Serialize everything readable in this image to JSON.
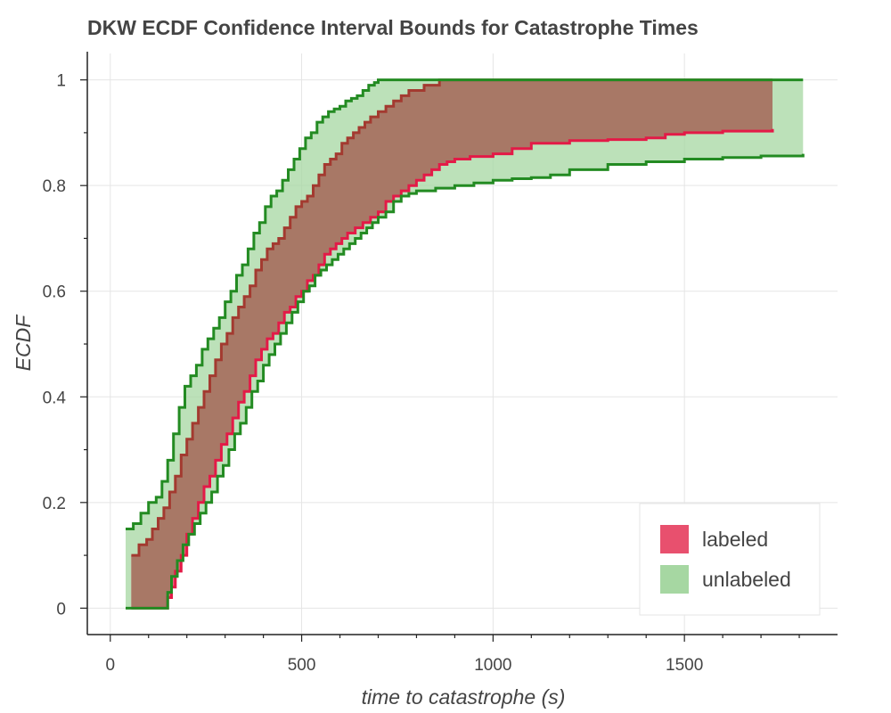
{
  "chart_data": {
    "type": "area",
    "title": "DKW ECDF Confidence Interval Bounds for Catastrophe Times",
    "xlabel": "time to catastrophe (s)",
    "ylabel": "ECDF",
    "xlim": [
      -60,
      1900
    ],
    "ylim": [
      -0.05,
      1.05
    ],
    "xticks": [
      0,
      500,
      1000,
      1500
    ],
    "xtick_labels": [
      "0",
      "500",
      "1000",
      "1500"
    ],
    "yticks": [
      0,
      0.2,
      0.4,
      0.6,
      0.8,
      1
    ],
    "ytick_labels": [
      "0",
      "0.2",
      "0.4",
      "0.6",
      "0.8",
      "1"
    ],
    "grid": true,
    "legend_position": "bottom-right",
    "colors": {
      "labeled_fill": "#e8506e",
      "labeled_line": "#e31a47",
      "unlabeled_fill": "#a6d7a2",
      "unlabeled_line": "#238b22",
      "overlap_fill": "#a87866",
      "overlap_line": "#a33a30",
      "grid": "#e5e5e5",
      "text": "#444444"
    },
    "series": [
      {
        "name": "labeled",
        "upper": {
          "x": [
            55,
            75,
            95,
            110,
            125,
            140,
            155,
            170,
            185,
            200,
            215,
            230,
            245,
            260,
            275,
            290,
            305,
            320,
            335,
            350,
            365,
            380,
            395,
            410,
            425,
            440,
            455,
            470,
            485,
            500,
            515,
            530,
            545,
            560,
            575,
            590,
            605,
            620,
            635,
            650,
            665,
            680,
            700,
            720,
            740,
            760,
            780,
            800,
            820,
            840,
            860,
            870,
            1730
          ],
          "y": [
            0.1,
            0.12,
            0.13,
            0.15,
            0.17,
            0.19,
            0.22,
            0.25,
            0.29,
            0.32,
            0.35,
            0.38,
            0.41,
            0.44,
            0.47,
            0.5,
            0.52,
            0.55,
            0.57,
            0.59,
            0.61,
            0.64,
            0.66,
            0.68,
            0.69,
            0.7,
            0.72,
            0.74,
            0.76,
            0.77,
            0.78,
            0.8,
            0.82,
            0.84,
            0.85,
            0.86,
            0.88,
            0.89,
            0.9,
            0.91,
            0.92,
            0.93,
            0.94,
            0.95,
            0.96,
            0.97,
            0.98,
            0.98,
            0.99,
            0.99,
            1.0,
            1.0,
            1.0
          ]
        },
        "lower": {
          "x": [
            55,
            140,
            150,
            160,
            170,
            185,
            200,
            215,
            230,
            245,
            260,
            275,
            290,
            305,
            320,
            335,
            350,
            365,
            380,
            395,
            410,
            425,
            440,
            455,
            470,
            485,
            500,
            515,
            530,
            545,
            560,
            575,
            590,
            605,
            620,
            640,
            660,
            680,
            700,
            720,
            740,
            760,
            780,
            800,
            820,
            840,
            860,
            880,
            900,
            940,
            1000,
            1050,
            1100,
            1200,
            1300,
            1400,
            1450,
            1500,
            1600,
            1730
          ],
          "y": [
            0.0,
            0.0,
            0.02,
            0.04,
            0.07,
            0.1,
            0.14,
            0.17,
            0.2,
            0.23,
            0.25,
            0.28,
            0.31,
            0.33,
            0.36,
            0.39,
            0.41,
            0.44,
            0.47,
            0.49,
            0.51,
            0.52,
            0.54,
            0.56,
            0.57,
            0.59,
            0.6,
            0.62,
            0.63,
            0.65,
            0.67,
            0.68,
            0.69,
            0.7,
            0.71,
            0.72,
            0.73,
            0.74,
            0.75,
            0.77,
            0.78,
            0.79,
            0.8,
            0.81,
            0.82,
            0.83,
            0.84,
            0.845,
            0.85,
            0.855,
            0.86,
            0.87,
            0.88,
            0.885,
            0.887,
            0.89,
            0.897,
            0.9,
            0.903,
            0.907
          ]
        }
      },
      {
        "name": "unlabeled",
        "upper": {
          "x": [
            40,
            60,
            80,
            100,
            120,
            135,
            150,
            165,
            180,
            195,
            210,
            225,
            240,
            255,
            270,
            285,
            300,
            315,
            330,
            345,
            360,
            375,
            390,
            405,
            420,
            435,
            450,
            465,
            480,
            495,
            510,
            525,
            540,
            555,
            570,
            585,
            600,
            615,
            630,
            645,
            660,
            675,
            690,
            700,
            1810
          ],
          "y": [
            0.15,
            0.16,
            0.18,
            0.2,
            0.21,
            0.24,
            0.28,
            0.33,
            0.38,
            0.42,
            0.44,
            0.46,
            0.49,
            0.51,
            0.53,
            0.55,
            0.58,
            0.6,
            0.63,
            0.65,
            0.68,
            0.71,
            0.73,
            0.76,
            0.78,
            0.79,
            0.81,
            0.83,
            0.85,
            0.87,
            0.89,
            0.9,
            0.92,
            0.93,
            0.94,
            0.945,
            0.95,
            0.96,
            0.965,
            0.97,
            0.98,
            0.99,
            0.995,
            1.0,
            1.0
          ]
        },
        "lower": {
          "x": [
            40,
            140,
            150,
            160,
            175,
            190,
            205,
            220,
            235,
            250,
            265,
            280,
            295,
            310,
            325,
            340,
            355,
            370,
            385,
            400,
            415,
            430,
            445,
            460,
            475,
            490,
            505,
            520,
            535,
            550,
            565,
            580,
            595,
            610,
            625,
            640,
            655,
            670,
            685,
            700,
            720,
            740,
            760,
            780,
            800,
            850,
            900,
            950,
            1000,
            1050,
            1100,
            1150,
            1200,
            1300,
            1400,
            1500,
            1600,
            1700,
            1810
          ],
          "y": [
            0.0,
            0.0,
            0.03,
            0.06,
            0.09,
            0.12,
            0.14,
            0.16,
            0.18,
            0.2,
            0.22,
            0.25,
            0.27,
            0.3,
            0.33,
            0.35,
            0.38,
            0.41,
            0.43,
            0.46,
            0.48,
            0.5,
            0.52,
            0.54,
            0.56,
            0.58,
            0.6,
            0.61,
            0.63,
            0.64,
            0.65,
            0.66,
            0.67,
            0.68,
            0.69,
            0.7,
            0.71,
            0.72,
            0.73,
            0.74,
            0.75,
            0.77,
            0.78,
            0.785,
            0.79,
            0.795,
            0.8,
            0.805,
            0.81,
            0.813,
            0.815,
            0.82,
            0.83,
            0.84,
            0.845,
            0.85,
            0.853,
            0.856,
            0.86
          ]
        }
      }
    ]
  }
}
